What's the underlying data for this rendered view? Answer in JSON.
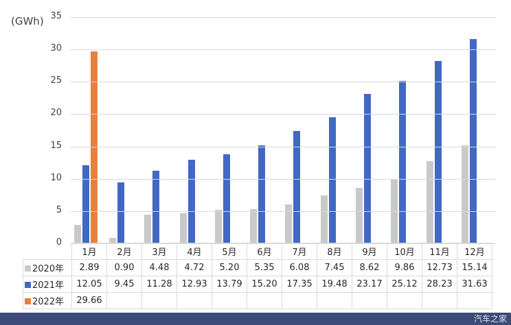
{
  "chart_data": {
    "type": "bar",
    "title": "",
    "xlabel": "",
    "ylabel": "(GWh)",
    "ylim": [
      0,
      35
    ],
    "yticks": [
      0,
      5,
      10,
      15,
      20,
      25,
      30,
      35
    ],
    "grid": true,
    "legend_position": "data-table",
    "categories": [
      "1月",
      "2月",
      "3月",
      "4月",
      "5月",
      "6月",
      "7月",
      "8月",
      "9月",
      "10月",
      "11月",
      "12月"
    ],
    "series": [
      {
        "name": "2020年",
        "color": "#c9c9c9",
        "values": [
          2.89,
          0.9,
          4.48,
          4.72,
          5.2,
          5.35,
          6.08,
          7.45,
          8.62,
          9.86,
          12.73,
          15.14
        ]
      },
      {
        "name": "2021年",
        "color": "#4169c0",
        "values": [
          12.05,
          9.45,
          11.28,
          12.93,
          13.79,
          15.2,
          17.35,
          19.48,
          23.17,
          25.12,
          28.23,
          31.63
        ]
      },
      {
        "name": "2022年",
        "color": "#e3813f",
        "values": [
          29.66
        ]
      }
    ]
  },
  "table": {
    "rows": [
      {
        "label": "2020年",
        "cells": [
          "2.89",
          "0.90",
          "4.48",
          "4.72",
          "5.20",
          "5.35",
          "6.08",
          "7.45",
          "8.62",
          "9.86",
          "12.73",
          "15.14"
        ]
      },
      {
        "label": "2021年",
        "cells": [
          "12.05",
          "9.45",
          "11.28",
          "12.93",
          "13.79",
          "15.20",
          "17.35",
          "19.48",
          "23.17",
          "25.12",
          "28.23",
          "31.63"
        ]
      },
      {
        "label": "2022年",
        "cells": [
          "29.66",
          "",
          "",
          "",
          "",
          "",
          "",
          "",
          "",
          "",
          "",
          ""
        ]
      }
    ]
  },
  "watermark": "汽车之家"
}
